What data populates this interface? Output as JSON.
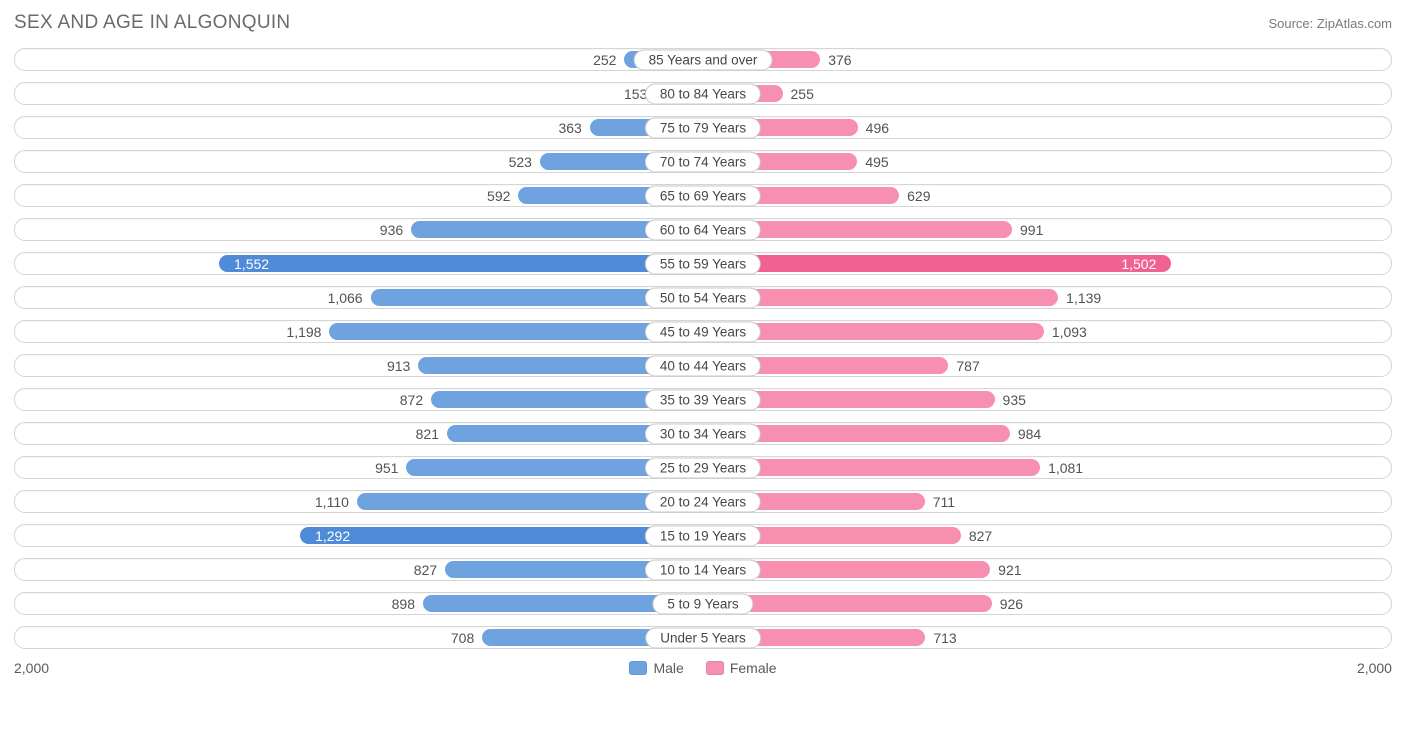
{
  "title": "SEX AND AGE IN ALGONQUIN",
  "source": "Source: ZipAtlas.com",
  "chart": {
    "type": "population-pyramid",
    "axis_max": 2200,
    "axis_tick_label": "2,000",
    "inside_label_threshold": 1250,
    "colors": {
      "male_bar": "#6ea3df",
      "male_bar_highlight": "#4f8bd6",
      "female_bar": "#f68fb0",
      "female_bar_highlight": "#f06292",
      "row_border": "#d5d5d5",
      "text": "#535353",
      "text_inside": "#ffffff",
      "background": "#ffffff"
    },
    "categories": [
      {
        "label": "85 Years and over",
        "male": 252,
        "female": 376
      },
      {
        "label": "80 to 84 Years",
        "male": 153,
        "female": 255
      },
      {
        "label": "75 to 79 Years",
        "male": 363,
        "female": 496
      },
      {
        "label": "70 to 74 Years",
        "male": 523,
        "female": 495
      },
      {
        "label": "65 to 69 Years",
        "male": 592,
        "female": 629
      },
      {
        "label": "60 to 64 Years",
        "male": 936,
        "female": 991
      },
      {
        "label": "55 to 59 Years",
        "male": 1552,
        "female": 1502
      },
      {
        "label": "50 to 54 Years",
        "male": 1066,
        "female": 1139
      },
      {
        "label": "45 to 49 Years",
        "male": 1198,
        "female": 1093
      },
      {
        "label": "40 to 44 Years",
        "male": 913,
        "female": 787
      },
      {
        "label": "35 to 39 Years",
        "male": 872,
        "female": 935
      },
      {
        "label": "30 to 34 Years",
        "male": 821,
        "female": 984
      },
      {
        "label": "25 to 29 Years",
        "male": 951,
        "female": 1081
      },
      {
        "label": "20 to 24 Years",
        "male": 1110,
        "female": 711
      },
      {
        "label": "15 to 19 Years",
        "male": 1292,
        "female": 827
      },
      {
        "label": "10 to 14 Years",
        "male": 827,
        "female": 921
      },
      {
        "label": "5 to 9 Years",
        "male": 898,
        "female": 926
      },
      {
        "label": "Under 5 Years",
        "male": 708,
        "female": 713
      }
    ],
    "legend": {
      "male": "Male",
      "female": "Female"
    }
  }
}
